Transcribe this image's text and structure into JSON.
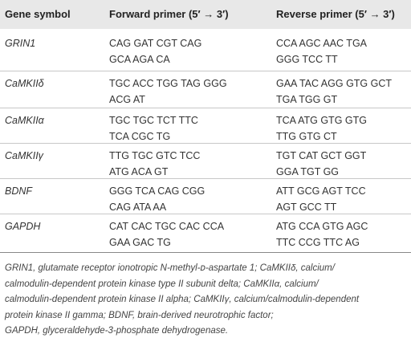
{
  "table": {
    "header": [
      "Gene symbol",
      "Forward primer (5′ → 3′)",
      "Reverse primer (5′ → 3′)"
    ],
    "rows": [
      {
        "gene": "GRIN1",
        "forward": [
          "CAG GAT CGT CAG",
          "GCA AGA CA"
        ],
        "reverse": [
          "CCA AGC AAC TGA",
          "GGG TCC TT"
        ]
      },
      {
        "gene": "CaMKIIδ",
        "forward": [
          "TGC ACC TGG TAG GGG",
          "ACG AT"
        ],
        "reverse": [
          "GAA TAC AGG GTG GCT",
          "TGA TGG GT"
        ]
      },
      {
        "gene": "CaMKIIα",
        "forward": [
          "TGC TGC TCT TTC",
          "TCA CGC TG"
        ],
        "reverse": [
          "TCA ATG GTG GTG",
          "TTG GTG CT"
        ]
      },
      {
        "gene": "CaMKIIγ",
        "forward": [
          "TTG TGC GTC TCC",
          "ATG ACA GT"
        ],
        "reverse": [
          "TGT CAT GCT GGT",
          "GGA TGT GG"
        ]
      },
      {
        "gene": "BDNF",
        "forward": [
          "GGG TCA CAG CGG",
          "CAG ATA AA"
        ],
        "reverse": [
          "ATT GCG AGT TCC",
          "AGT GCC TT"
        ]
      },
      {
        "gene": "GAPDH",
        "forward": [
          "CAT CAC TGC CAC CCA",
          "GAA GAC TG"
        ],
        "reverse": [
          "ATG CCA GTG AGC",
          "TTC CCG TTC AG"
        ]
      }
    ],
    "footnote": [
      "GRIN1, glutamate receptor ionotropic N-methyl-ᴅ-aspartate 1; CaMKIIδ, calcium/",
      "calmodulin-dependent protein kinase type II subunit delta; CaMKIIα, calcium/",
      "calmodulin-dependent protein kinase II alpha; CaMKIIγ, calcium/calmodulin-dependent",
      "protein kinase II gamma; BDNF, brain-derived neurotrophic factor;",
      "GAPDH, glyceraldehyde-3-phosphate dehydrogenase."
    ]
  }
}
